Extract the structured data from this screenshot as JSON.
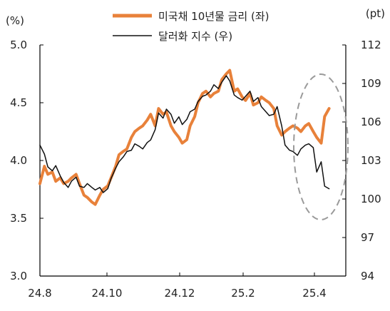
{
  "chart_data": {
    "type": "line",
    "left_unit": "(%)",
    "right_unit": "(pt)",
    "x_ticks": [
      "24.8",
      "24.10",
      "24.12",
      "25.2",
      "25.4"
    ],
    "y_left": {
      "min": 3.0,
      "max": 5.0,
      "ticks": [
        "3.0",
        "3.5",
        "4.0",
        "4.5",
        "5.0"
      ]
    },
    "y_right": {
      "min": 94,
      "max": 112,
      "ticks": [
        "94",
        "97",
        "100",
        "103",
        "106",
        "109",
        "112"
      ]
    },
    "legend_placement": "top-center",
    "grid": false,
    "series": [
      {
        "name": "미국채 10년물 금리 (좌)",
        "axis": "left",
        "color": "#e8813a",
        "x": [
          "2024-08-01",
          "2024-08-05",
          "2024-08-08",
          "2024-08-12",
          "2024-08-15",
          "2024-08-19",
          "2024-08-22",
          "2024-08-26",
          "2024-08-29",
          "2024-09-02",
          "2024-09-05",
          "2024-09-09",
          "2024-09-12",
          "2024-09-16",
          "2024-09-19",
          "2024-09-23",
          "2024-09-26",
          "2024-09-30",
          "2024-10-03",
          "2024-10-07",
          "2024-10-10",
          "2024-10-14",
          "2024-10-17",
          "2024-10-21",
          "2024-10-24",
          "2024-10-28",
          "2024-10-31",
          "2024-11-04",
          "2024-11-07",
          "2024-11-11",
          "2024-11-14",
          "2024-11-18",
          "2024-11-21",
          "2024-11-25",
          "2024-11-28",
          "2024-12-02",
          "2024-12-05",
          "2024-12-09",
          "2024-12-12",
          "2024-12-16",
          "2024-12-19",
          "2024-12-23",
          "2024-12-26",
          "2024-12-30",
          "2025-01-02",
          "2025-01-06",
          "2025-01-09",
          "2025-01-13",
          "2025-01-16",
          "2025-01-20",
          "2025-01-23",
          "2025-01-27",
          "2025-01-30",
          "2025-02-03",
          "2025-02-06",
          "2025-02-10",
          "2025-02-13",
          "2025-02-17",
          "2025-02-20",
          "2025-02-24",
          "2025-02-27",
          "2025-03-03",
          "2025-03-06",
          "2025-03-10",
          "2025-03-13",
          "2025-03-17",
          "2025-03-20",
          "2025-03-24",
          "2025-03-27",
          "2025-03-31",
          "2025-04-03",
          "2025-04-07",
          "2025-04-10",
          "2025-04-14"
        ],
        "values": [
          3.8,
          3.95,
          3.88,
          3.9,
          3.82,
          3.85,
          3.8,
          3.82,
          3.85,
          3.88,
          3.8,
          3.7,
          3.68,
          3.64,
          3.62,
          3.7,
          3.75,
          3.78,
          3.85,
          3.95,
          4.05,
          4.08,
          4.1,
          4.2,
          4.25,
          4.28,
          4.3,
          4.35,
          4.4,
          4.3,
          4.45,
          4.4,
          4.42,
          4.3,
          4.25,
          4.2,
          4.15,
          4.18,
          4.3,
          4.38,
          4.5,
          4.58,
          4.6,
          4.55,
          4.58,
          4.6,
          4.7,
          4.75,
          4.78,
          4.6,
          4.62,
          4.55,
          4.52,
          4.58,
          4.48,
          4.5,
          4.55,
          4.52,
          4.5,
          4.45,
          4.3,
          4.22,
          4.25,
          4.28,
          4.3,
          4.28,
          4.25,
          4.3,
          4.32,
          4.25,
          4.2,
          4.15,
          4.38,
          4.45
        ]
      },
      {
        "name": "달러화 지수 (우)",
        "axis": "right",
        "color": "#111111",
        "x": [
          "2024-08-01",
          "2024-08-05",
          "2024-08-08",
          "2024-08-12",
          "2024-08-15",
          "2024-08-19",
          "2024-08-22",
          "2024-08-26",
          "2024-08-29",
          "2024-09-02",
          "2024-09-05",
          "2024-09-09",
          "2024-09-12",
          "2024-09-16",
          "2024-09-19",
          "2024-09-23",
          "2024-09-26",
          "2024-09-30",
          "2024-10-03",
          "2024-10-07",
          "2024-10-10",
          "2024-10-14",
          "2024-10-17",
          "2024-10-21",
          "2024-10-24",
          "2024-10-28",
          "2024-10-31",
          "2024-11-04",
          "2024-11-07",
          "2024-11-11",
          "2024-11-14",
          "2024-11-18",
          "2024-11-21",
          "2024-11-25",
          "2024-11-28",
          "2024-12-02",
          "2024-12-05",
          "2024-12-09",
          "2024-12-12",
          "2024-12-16",
          "2024-12-19",
          "2024-12-23",
          "2024-12-26",
          "2024-12-30",
          "2025-01-02",
          "2025-01-06",
          "2025-01-09",
          "2025-01-13",
          "2025-01-16",
          "2025-01-20",
          "2025-01-23",
          "2025-01-27",
          "2025-01-30",
          "2025-02-03",
          "2025-02-06",
          "2025-02-10",
          "2025-02-13",
          "2025-02-17",
          "2025-02-20",
          "2025-02-24",
          "2025-02-27",
          "2025-03-03",
          "2025-03-06",
          "2025-03-10",
          "2025-03-13",
          "2025-03-17",
          "2025-03-20",
          "2025-03-24",
          "2025-03-27",
          "2025-03-31",
          "2025-04-03",
          "2025-04-07",
          "2025-04-10",
          "2025-04-14"
        ],
        "values": [
          104.2,
          103.5,
          102.5,
          102.2,
          102.6,
          101.8,
          101.3,
          100.9,
          101.4,
          101.7,
          101.0,
          100.9,
          101.2,
          100.9,
          100.7,
          100.9,
          100.5,
          100.8,
          101.6,
          102.4,
          102.9,
          103.3,
          103.7,
          103.8,
          104.3,
          104.1,
          103.9,
          104.4,
          104.6,
          105.4,
          106.7,
          106.3,
          107.0,
          106.6,
          105.9,
          106.4,
          105.8,
          106.2,
          106.8,
          107.0,
          107.6,
          108.0,
          108.1,
          108.4,
          108.9,
          108.6,
          109.1,
          109.6,
          109.2,
          108.1,
          107.9,
          107.7,
          108.0,
          108.4,
          107.6,
          107.9,
          107.2,
          106.8,
          106.5,
          106.6,
          107.2,
          105.7,
          104.2,
          103.8,
          103.7,
          103.4,
          103.9,
          104.2,
          104.3,
          104.0,
          102.1,
          102.9,
          101.0,
          100.8
        ]
      }
    ],
    "annotation": "dashed ellipse highlighting recent period"
  }
}
